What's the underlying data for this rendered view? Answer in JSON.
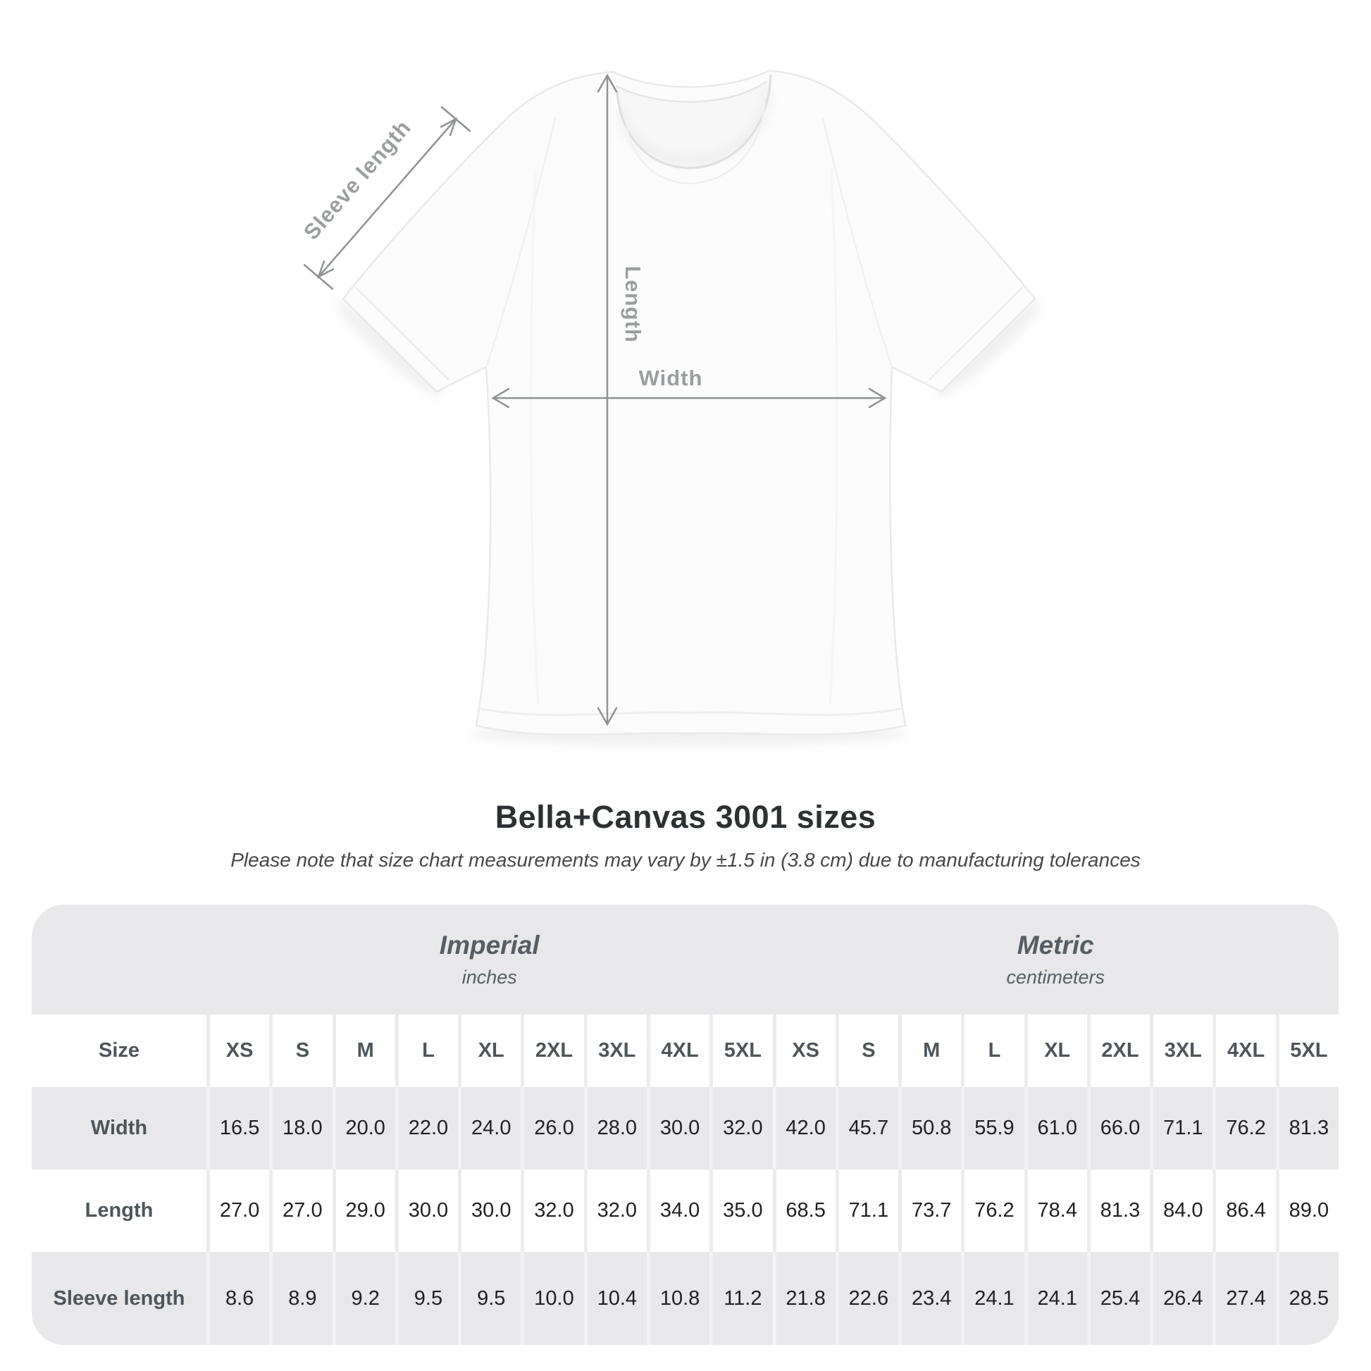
{
  "diagram": {
    "sleeve_length_label": "Sleeve length",
    "length_label": "Length",
    "width_label": "Width"
  },
  "title": "Bella+Canvas 3001 sizes",
  "subtitle": "Please note that size chart measurements may vary by ±1.5 in (3.8 cm) due to manufacturing tolerances",
  "table": {
    "size_header": "Size",
    "groups": [
      {
        "label": "Imperial",
        "unit": "inches"
      },
      {
        "label": "Metric",
        "unit": "centimeters"
      }
    ],
    "sizes": [
      "XS",
      "S",
      "M",
      "L",
      "XL",
      "2XL",
      "3XL",
      "4XL",
      "5XL"
    ],
    "rows": [
      {
        "label": "Width",
        "imperial": [
          "16.5",
          "18.0",
          "20.0",
          "22.0",
          "24.0",
          "26.0",
          "28.0",
          "30.0",
          "32.0"
        ],
        "metric": [
          "42.0",
          "45.7",
          "50.8",
          "55.9",
          "61.0",
          "66.0",
          "71.1",
          "76.2",
          "81.3"
        ]
      },
      {
        "label": "Length",
        "imperial": [
          "27.0",
          "27.0",
          "29.0",
          "30.0",
          "30.0",
          "32.0",
          "32.0",
          "34.0",
          "35.0"
        ],
        "metric": [
          "68.5",
          "71.1",
          "73.7",
          "76.2",
          "78.4",
          "81.3",
          "84.0",
          "86.4",
          "89.0"
        ]
      },
      {
        "label": "Sleeve length",
        "imperial": [
          "8.6",
          "8.9",
          "9.2",
          "9.5",
          "9.5",
          "10.0",
          "10.4",
          "10.8",
          "11.2"
        ],
        "metric": [
          "21.8",
          "22.6",
          "23.4",
          "24.1",
          "24.1",
          "25.4",
          "26.4",
          "27.4",
          "28.5"
        ]
      }
    ]
  },
  "chart_data": {
    "type": "table",
    "title": "Bella+Canvas 3001 sizes",
    "note": "Measurements may vary by ±1.5 in (3.8 cm) due to manufacturing tolerances",
    "columns": [
      "XS",
      "S",
      "M",
      "L",
      "XL",
      "2XL",
      "3XL",
      "4XL",
      "5XL"
    ],
    "units": {
      "imperial": "inches",
      "metric": "centimeters"
    },
    "rows_imperial": {
      "Width": [
        16.5,
        18.0,
        20.0,
        22.0,
        24.0,
        26.0,
        28.0,
        30.0,
        32.0
      ],
      "Length": [
        27.0,
        27.0,
        29.0,
        30.0,
        30.0,
        32.0,
        32.0,
        34.0,
        35.0
      ],
      "Sleeve length": [
        8.6,
        8.9,
        9.2,
        9.5,
        9.5,
        10.0,
        10.4,
        10.8,
        11.2
      ]
    },
    "rows_metric": {
      "Width": [
        42.0,
        45.7,
        50.8,
        55.9,
        61.0,
        66.0,
        71.1,
        76.2,
        81.3
      ],
      "Length": [
        68.5,
        71.1,
        73.7,
        76.2,
        78.4,
        81.3,
        84.0,
        86.4,
        89.0
      ],
      "Sleeve length": [
        21.8,
        22.6,
        23.4,
        24.1,
        24.1,
        25.4,
        26.4,
        27.4,
        28.5
      ]
    }
  }
}
